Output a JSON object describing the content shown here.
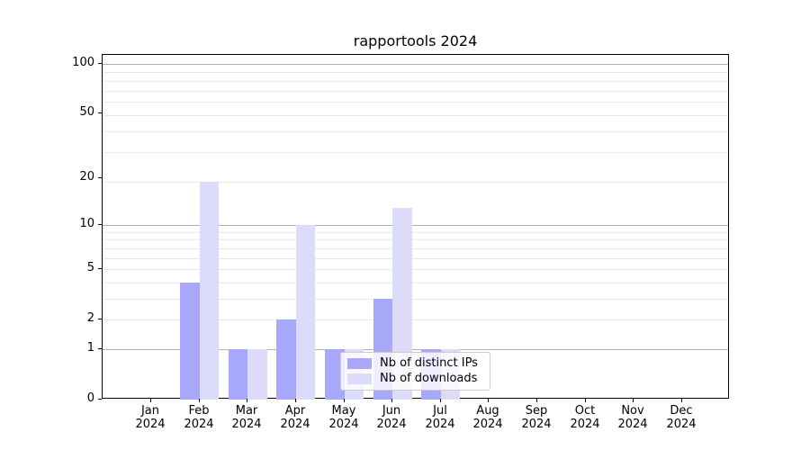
{
  "chart_data": {
    "type": "bar",
    "title": "rapportools 2024",
    "categories": [
      "Jan",
      "Feb",
      "Mar",
      "Apr",
      "May",
      "Jun",
      "Jul",
      "Aug",
      "Sep",
      "Oct",
      "Nov",
      "Dec"
    ],
    "x_year": "2024",
    "series": [
      {
        "name": "Nb of distinct IPs",
        "color": "#a8a8fa",
        "values": [
          0,
          4,
          1,
          2,
          1,
          3,
          1,
          0,
          0,
          0,
          0,
          0
        ]
      },
      {
        "name": "Nb of downloads",
        "color": "#dcdcfa",
        "values": [
          0,
          19,
          1,
          10,
          1,
          13,
          1,
          0,
          0,
          0,
          0,
          0
        ]
      }
    ],
    "xlabel": "",
    "ylabel": "",
    "yticks": [
      0,
      1,
      2,
      5,
      10,
      20,
      50,
      100
    ],
    "y_scale": "log1p",
    "ylim": [
      0,
      113.3
    ],
    "grid": {
      "on": true,
      "major_ticks": [
        1,
        10,
        100
      ],
      "minor_ticks": [
        2,
        3,
        4,
        5,
        6,
        7,
        8,
        9,
        19,
        29,
        39,
        49,
        59,
        69,
        79,
        89
      ],
      "major_color": "#b2b2b2",
      "minor_color": "#e9e9e9"
    },
    "legend": {
      "position": "lower center-right",
      "entries": [
        "Nb of distinct IPs",
        "Nb of downloads"
      ]
    }
  }
}
